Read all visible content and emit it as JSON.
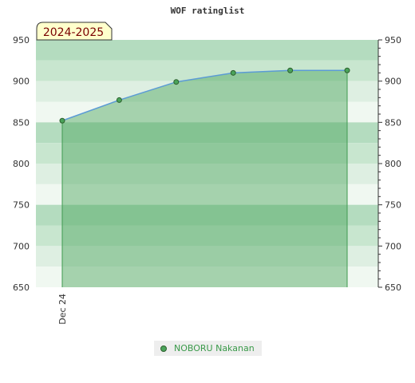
{
  "chart_data": {
    "type": "area",
    "title": "WOF ratinglist",
    "season_label": "2024-2025",
    "xlabel": "",
    "ylabel": "",
    "ylim": [
      650,
      950
    ],
    "y_ticks": [
      650,
      700,
      750,
      800,
      850,
      900,
      950
    ],
    "x_tick_labels": [
      "Dec 24"
    ],
    "grid": true,
    "legend_position": "bottom-center",
    "series": [
      {
        "name": "NOBORU Nakanan",
        "values": [
          852,
          877,
          899,
          910,
          913,
          913
        ],
        "color": "#5b9bd5",
        "fill": "#4aa35a",
        "marker_fill": "#4aa35a"
      }
    ]
  }
}
